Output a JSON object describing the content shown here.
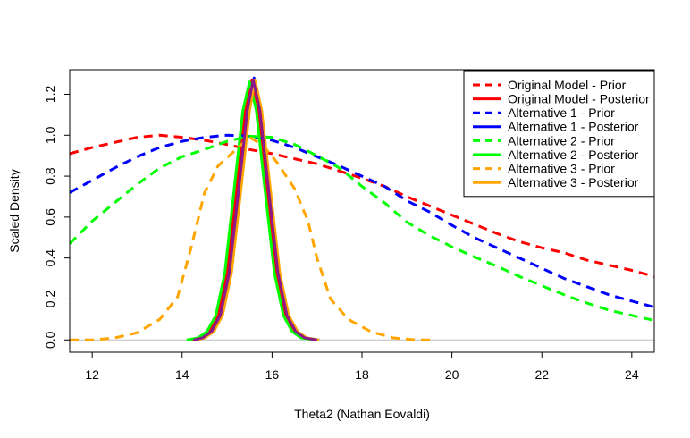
{
  "chart_data": {
    "type": "line",
    "title": "",
    "xlabel": "Theta2 (Nathan Eovaldi)",
    "ylabel": "Scaled Density",
    "xlim": [
      11.5,
      24.5
    ],
    "ylim": [
      -0.06,
      1.32
    ],
    "x_ticks": [
      12,
      14,
      16,
      18,
      20,
      22,
      24
    ],
    "y_ticks": [
      0.0,
      0.2,
      0.4,
      0.6,
      0.8,
      1.0,
      1.2
    ],
    "x_tick_labels": [
      "12",
      "14",
      "16",
      "18",
      "20",
      "22",
      "24"
    ],
    "y_tick_labels": [
      "0.0",
      "0.2",
      "0.4",
      "0.6",
      "0.8",
      "1.0",
      "1.2"
    ],
    "grid": false,
    "baseline": 0,
    "legend_position": "top-right",
    "series": [
      {
        "name": "Original Model - Prior",
        "color": "#ff0000",
        "style": "dashed",
        "points": [
          [
            11.5,
            0.91
          ],
          [
            12,
            0.94
          ],
          [
            12.5,
            0.965
          ],
          [
            13,
            0.99
          ],
          [
            13.5,
            1.0
          ],
          [
            14,
            0.99
          ],
          [
            14.5,
            0.975
          ],
          [
            15,
            0.955
          ],
          [
            15.5,
            0.93
          ],
          [
            16,
            0.91
          ],
          [
            16.5,
            0.885
          ],
          [
            17,
            0.86
          ],
          [
            17.5,
            0.825
          ],
          [
            18,
            0.79
          ],
          [
            18.5,
            0.75
          ],
          [
            19,
            0.7
          ],
          [
            19.5,
            0.655
          ],
          [
            20,
            0.61
          ],
          [
            20.5,
            0.565
          ],
          [
            21,
            0.52
          ],
          [
            21.5,
            0.48
          ],
          [
            22,
            0.45
          ],
          [
            22.5,
            0.425
          ],
          [
            23,
            0.39
          ],
          [
            23.5,
            0.365
          ],
          [
            24,
            0.34
          ],
          [
            24.5,
            0.31
          ]
        ]
      },
      {
        "name": "Original Model - Posterior",
        "color": "#ff0000",
        "style": "solid",
        "points": [
          [
            14.2,
            0.0
          ],
          [
            14.4,
            0.01
          ],
          [
            14.6,
            0.04
          ],
          [
            14.8,
            0.12
          ],
          [
            15.0,
            0.33
          ],
          [
            15.2,
            0.72
          ],
          [
            15.4,
            1.12
          ],
          [
            15.55,
            1.27
          ],
          [
            15.7,
            1.13
          ],
          [
            15.9,
            0.72
          ],
          [
            16.1,
            0.33
          ],
          [
            16.3,
            0.12
          ],
          [
            16.5,
            0.04
          ],
          [
            16.7,
            0.01
          ],
          [
            17.0,
            0.0
          ]
        ]
      },
      {
        "name": "Alternative 1 - Prior",
        "color": "#0000ff",
        "style": "dashed",
        "points": [
          [
            11.5,
            0.72
          ],
          [
            12,
            0.78
          ],
          [
            12.5,
            0.84
          ],
          [
            13,
            0.895
          ],
          [
            13.5,
            0.94
          ],
          [
            14,
            0.97
          ],
          [
            14.5,
            0.99
          ],
          [
            15,
            1.0
          ],
          [
            15.5,
            0.995
          ],
          [
            16,
            0.975
          ],
          [
            16.5,
            0.94
          ],
          [
            17,
            0.895
          ],
          [
            17.5,
            0.85
          ],
          [
            18,
            0.8
          ],
          [
            18.5,
            0.75
          ],
          [
            19,
            0.68
          ],
          [
            19.5,
            0.625
          ],
          [
            20,
            0.56
          ],
          [
            20.5,
            0.5
          ],
          [
            21,
            0.45
          ],
          [
            21.5,
            0.4
          ],
          [
            22,
            0.35
          ],
          [
            22.5,
            0.3
          ],
          [
            23,
            0.26
          ],
          [
            23.5,
            0.22
          ],
          [
            24,
            0.19
          ],
          [
            24.5,
            0.16
          ]
        ]
      },
      {
        "name": "Alternative 1 - Posterior",
        "color": "#0000ff",
        "style": "solid",
        "points": [
          [
            14.25,
            0.0
          ],
          [
            14.45,
            0.01
          ],
          [
            14.65,
            0.04
          ],
          [
            14.85,
            0.12
          ],
          [
            15.05,
            0.33
          ],
          [
            15.25,
            0.72
          ],
          [
            15.45,
            1.12
          ],
          [
            15.6,
            1.28
          ],
          [
            15.75,
            1.13
          ],
          [
            15.95,
            0.72
          ],
          [
            16.15,
            0.33
          ],
          [
            16.35,
            0.12
          ],
          [
            16.55,
            0.04
          ],
          [
            16.75,
            0.01
          ],
          [
            17.05,
            0.0
          ]
        ]
      },
      {
        "name": "Alternative 2 - Prior",
        "color": "#00ff00",
        "style": "dashed",
        "points": [
          [
            11.5,
            0.47
          ],
          [
            12,
            0.58
          ],
          [
            12.5,
            0.67
          ],
          [
            13,
            0.76
          ],
          [
            13.5,
            0.84
          ],
          [
            14,
            0.895
          ],
          [
            14.5,
            0.93
          ],
          [
            15,
            0.97
          ],
          [
            15.5,
            0.995
          ],
          [
            16,
            0.99
          ],
          [
            16.5,
            0.955
          ],
          [
            17,
            0.9
          ],
          [
            17.5,
            0.84
          ],
          [
            18,
            0.75
          ],
          [
            18.5,
            0.67
          ],
          [
            19,
            0.575
          ],
          [
            19.5,
            0.51
          ],
          [
            20,
            0.455
          ],
          [
            20.5,
            0.405
          ],
          [
            21,
            0.36
          ],
          [
            21.5,
            0.31
          ],
          [
            22,
            0.265
          ],
          [
            22.5,
            0.22
          ],
          [
            23,
            0.18
          ],
          [
            23.5,
            0.145
          ],
          [
            24,
            0.12
          ],
          [
            24.5,
            0.095
          ]
        ]
      },
      {
        "name": "Alternative 2 - Posterior",
        "color": "#00ff00",
        "style": "solid",
        "points": [
          [
            14.1,
            0.0
          ],
          [
            14.35,
            0.01
          ],
          [
            14.55,
            0.04
          ],
          [
            14.75,
            0.12
          ],
          [
            14.95,
            0.33
          ],
          [
            15.15,
            0.72
          ],
          [
            15.35,
            1.12
          ],
          [
            15.5,
            1.26
          ],
          [
            15.65,
            1.12
          ],
          [
            15.85,
            0.72
          ],
          [
            16.05,
            0.33
          ],
          [
            16.25,
            0.12
          ],
          [
            16.45,
            0.04
          ],
          [
            16.65,
            0.01
          ],
          [
            16.95,
            0.0
          ]
        ]
      },
      {
        "name": "Alternative 3 - Prior",
        "color": "#ffa500",
        "style": "dashed",
        "points": [
          [
            11.5,
            0.0
          ],
          [
            12,
            0.0
          ],
          [
            12.5,
            0.01
          ],
          [
            13,
            0.035
          ],
          [
            13.5,
            0.1
          ],
          [
            13.9,
            0.21
          ],
          [
            14.2,
            0.45
          ],
          [
            14.5,
            0.72
          ],
          [
            14.8,
            0.85
          ],
          [
            15.2,
            0.93
          ],
          [
            15.5,
            0.99
          ],
          [
            15.8,
            0.95
          ],
          [
            16.1,
            0.87
          ],
          [
            16.5,
            0.74
          ],
          [
            16.8,
            0.58
          ],
          [
            17.0,
            0.4
          ],
          [
            17.3,
            0.2
          ],
          [
            17.7,
            0.1
          ],
          [
            18.2,
            0.04
          ],
          [
            18.7,
            0.01
          ],
          [
            19.2,
            0.0
          ],
          [
            19.6,
            0.0
          ]
        ]
      },
      {
        "name": "Alternative 3 - Posterior",
        "color": "#ffa500",
        "style": "solid",
        "points": [
          [
            14.3,
            0.0
          ],
          [
            14.5,
            0.01
          ],
          [
            14.7,
            0.04
          ],
          [
            14.9,
            0.12
          ],
          [
            15.1,
            0.33
          ],
          [
            15.3,
            0.72
          ],
          [
            15.5,
            1.12
          ],
          [
            15.62,
            1.27
          ],
          [
            15.77,
            1.12
          ],
          [
            15.97,
            0.72
          ],
          [
            16.17,
            0.33
          ],
          [
            16.37,
            0.12
          ],
          [
            16.57,
            0.04
          ],
          [
            16.77,
            0.01
          ],
          [
            17.05,
            0.0
          ]
        ]
      },
      {
        "name": "",
        "color": "#8b1a89",
        "style": "solid",
        "points": [
          [
            14.25,
            0.0
          ],
          [
            14.45,
            0.01
          ],
          [
            14.65,
            0.04
          ],
          [
            14.85,
            0.12
          ],
          [
            15.05,
            0.33
          ],
          [
            15.25,
            0.72
          ],
          [
            15.45,
            1.12
          ],
          [
            15.58,
            1.27
          ],
          [
            15.73,
            1.12
          ],
          [
            15.93,
            0.72
          ],
          [
            16.13,
            0.33
          ],
          [
            16.33,
            0.12
          ],
          [
            16.53,
            0.04
          ],
          [
            16.73,
            0.01
          ],
          [
            17.0,
            0.0
          ]
        ]
      }
    ]
  }
}
